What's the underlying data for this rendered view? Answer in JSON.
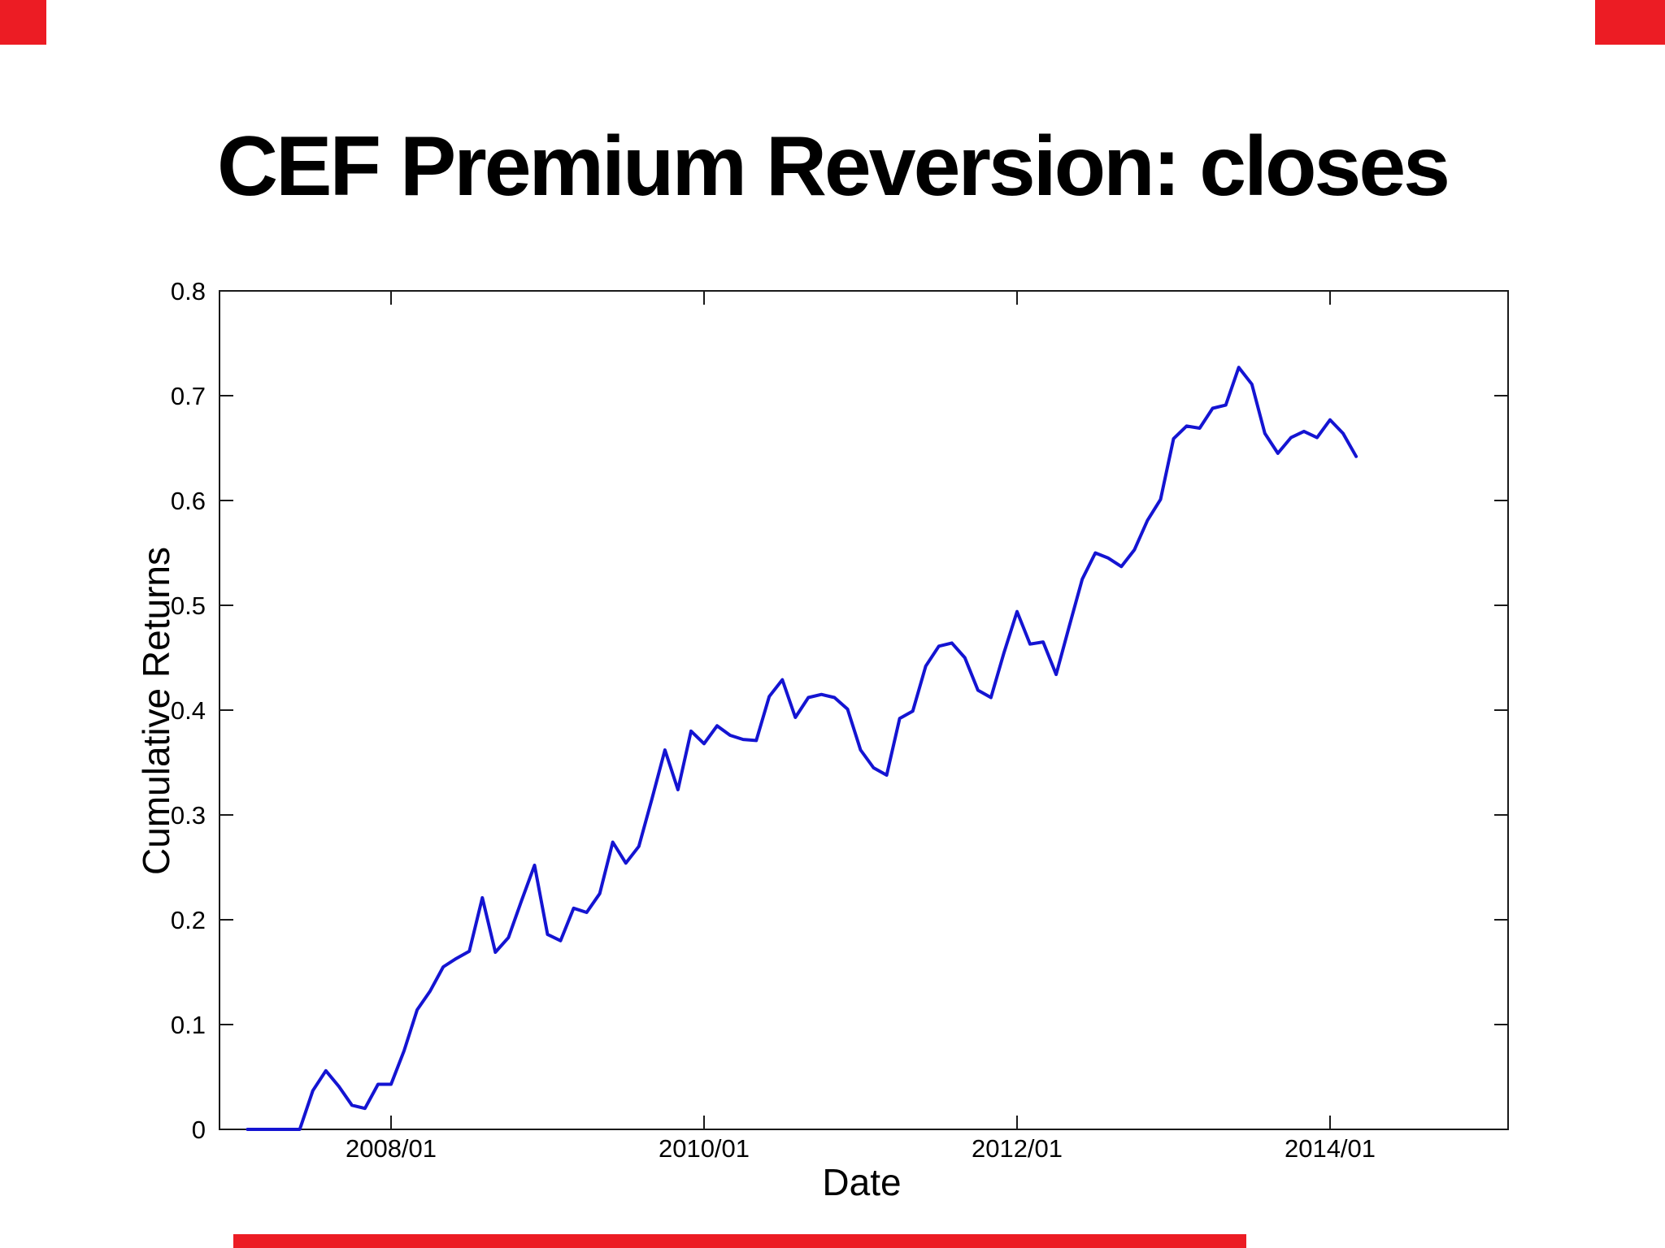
{
  "slide": {
    "title": "CEF Premium Reversion: closes"
  },
  "theme": {
    "background": "#ffffff",
    "accent_red": "#ec1c24",
    "axis_color": "#1a1a1a",
    "line_blue": "#1414d2"
  },
  "decorations": {
    "top_left_red_block": true,
    "top_right_red_block": true,
    "bottom_red_bar": true
  },
  "chart_data": {
    "type": "line",
    "title": "",
    "xlabel": "Date",
    "ylabel": "Cumulative Returns",
    "ylim": [
      0,
      0.8
    ],
    "grid": false,
    "legend": null,
    "yticks": {
      "values": [
        0,
        0.1,
        0.2,
        0.3,
        0.4,
        0.5,
        0.6,
        0.7,
        0.8
      ],
      "labels": [
        "0",
        "0.1",
        "0.2",
        "0.3",
        "0.4",
        "0.5",
        "0.6",
        "0.7",
        "0.8"
      ]
    },
    "xticks": [
      "2008/01",
      "2010/01",
      "2012/01",
      "2014/01"
    ],
    "series": [
      {
        "name": "Cumulative Returns",
        "color": "#1414d2",
        "points": [
          [
            "2007/02",
            0.0
          ],
          [
            "2007/03",
            0.0
          ],
          [
            "2007/04",
            0.0
          ],
          [
            "2007/05",
            0.0
          ],
          [
            "2007/06",
            0.0
          ],
          [
            "2007/07",
            0.037
          ],
          [
            "2007/08",
            0.056
          ],
          [
            "2007/09",
            0.041
          ],
          [
            "2007/10",
            0.023
          ],
          [
            "2007/11",
            0.02
          ],
          [
            "2007/12",
            0.043
          ],
          [
            "2008/01",
            0.043
          ],
          [
            "2008/02",
            0.075
          ],
          [
            "2008/03",
            0.114
          ],
          [
            "2008/04",
            0.132
          ],
          [
            "2008/05",
            0.155
          ],
          [
            "2008/06",
            0.163
          ],
          [
            "2008/07",
            0.17
          ],
          [
            "2008/08",
            0.221
          ],
          [
            "2008/09",
            0.169
          ],
          [
            "2008/10",
            0.183
          ],
          [
            "2008/11",
            0.218
          ],
          [
            "2008/12",
            0.252
          ],
          [
            "2009/01",
            0.186
          ],
          [
            "2009/02",
            0.18
          ],
          [
            "2009/03",
            0.211
          ],
          [
            "2009/04",
            0.207
          ],
          [
            "2009/05",
            0.225
          ],
          [
            "2009/06",
            0.274
          ],
          [
            "2009/07",
            0.254
          ],
          [
            "2009/08",
            0.27
          ],
          [
            "2009/09",
            0.315
          ],
          [
            "2009/10",
            0.362
          ],
          [
            "2009/11",
            0.324
          ],
          [
            "2009/12",
            0.38
          ],
          [
            "2010/01",
            0.368
          ],
          [
            "2010/02",
            0.385
          ],
          [
            "2010/03",
            0.376
          ],
          [
            "2010/04",
            0.372
          ],
          [
            "2010/05",
            0.371
          ],
          [
            "2010/06",
            0.413
          ],
          [
            "2010/07",
            0.429
          ],
          [
            "2010/08",
            0.393
          ],
          [
            "2010/09",
            0.412
          ],
          [
            "2010/10",
            0.415
          ],
          [
            "2010/11",
            0.412
          ],
          [
            "2010/12",
            0.401
          ],
          [
            "2011/01",
            0.362
          ],
          [
            "2011/02",
            0.345
          ],
          [
            "2011/03",
            0.338
          ],
          [
            "2011/04",
            0.392
          ],
          [
            "2011/05",
            0.399
          ],
          [
            "2011/06",
            0.442
          ],
          [
            "2011/07",
            0.461
          ],
          [
            "2011/08",
            0.464
          ],
          [
            "2011/09",
            0.45
          ],
          [
            "2011/10",
            0.419
          ],
          [
            "2011/11",
            0.412
          ],
          [
            "2011/12",
            0.455
          ],
          [
            "2012/01",
            0.494
          ],
          [
            "2012/02",
            0.463
          ],
          [
            "2012/03",
            0.465
          ],
          [
            "2012/04",
            0.434
          ],
          [
            "2012/05",
            0.48
          ],
          [
            "2012/06",
            0.525
          ],
          [
            "2012/07",
            0.55
          ],
          [
            "2012/08",
            0.545
          ],
          [
            "2012/09",
            0.537
          ],
          [
            "2012/10",
            0.553
          ],
          [
            "2012/11",
            0.581
          ],
          [
            "2012/12",
            0.601
          ],
          [
            "2013/01",
            0.659
          ],
          [
            "2013/02",
            0.671
          ],
          [
            "2013/03",
            0.669
          ],
          [
            "2013/04",
            0.688
          ],
          [
            "2013/05",
            0.691
          ],
          [
            "2013/06",
            0.727
          ],
          [
            "2013/07",
            0.711
          ],
          [
            "2013/08",
            0.664
          ],
          [
            "2013/09",
            0.645
          ],
          [
            "2013/10",
            0.66
          ],
          [
            "2013/11",
            0.666
          ],
          [
            "2013/12",
            0.66
          ],
          [
            "2014/01",
            0.677
          ],
          [
            "2014/02",
            0.664
          ],
          [
            "2014/03",
            0.642
          ]
        ]
      }
    ]
  }
}
